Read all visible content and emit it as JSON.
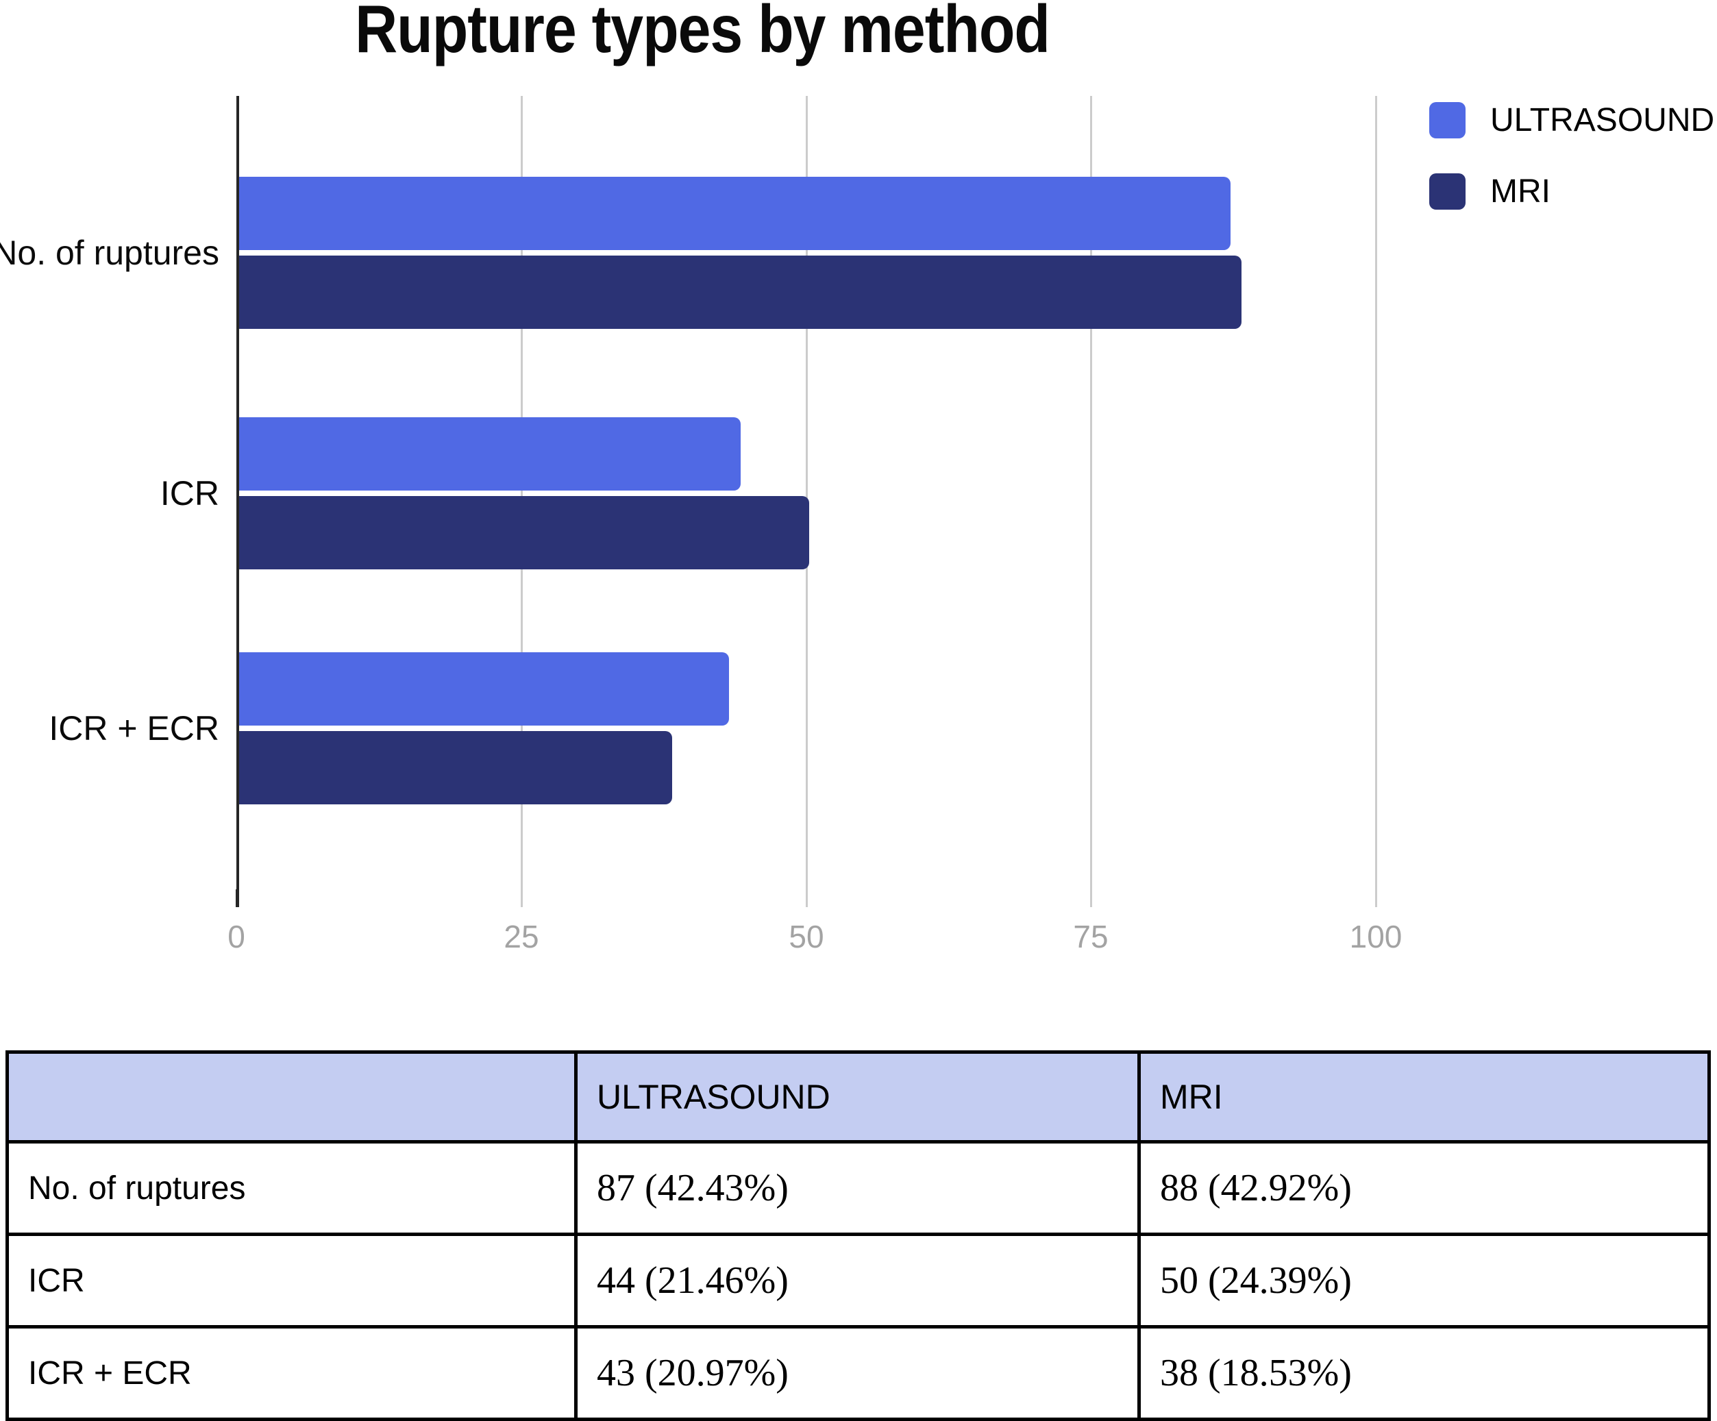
{
  "title": "Rupture types by method",
  "colors": {
    "ultrasound": "#5069e4",
    "mri": "#2b3375",
    "grid": "#cccccc",
    "axis": "#262626",
    "tick_label": "#a3a3a3",
    "category_label": "#0a0a0a",
    "table_header_bg": "#c4cdf2",
    "table_border": "#000000"
  },
  "chart_data": {
    "type": "bar",
    "orientation": "horizontal",
    "title": "Rupture types by method",
    "categories": [
      "No. of ruptures",
      "ICR",
      "ICR + ECR"
    ],
    "series": [
      {
        "name": "ULTRASOUND",
        "color": "#5069e4",
        "values": [
          87,
          44,
          43
        ]
      },
      {
        "name": "MRI",
        "color": "#2b3375",
        "values": [
          88,
          50,
          38
        ]
      }
    ],
    "xlim": [
      0,
      100
    ],
    "xticks": [
      0,
      25,
      50,
      75,
      100
    ],
    "grid": true,
    "legend_position": "top-right"
  },
  "table": {
    "headers": [
      "",
      "ULTRASOUND",
      "MRI"
    ],
    "rows": [
      {
        "label": "No. of ruptures",
        "ultrasound": "87 (42.43%)",
        "mri": "88 (42.92%)"
      },
      {
        "label": "ICR",
        "ultrasound": "44 (21.46%)",
        "mri": "50 (24.39%)"
      },
      {
        "label": "ICR + ECR",
        "ultrasound": "43 (20.97%)",
        "mri": "38 (18.53%)"
      }
    ]
  }
}
